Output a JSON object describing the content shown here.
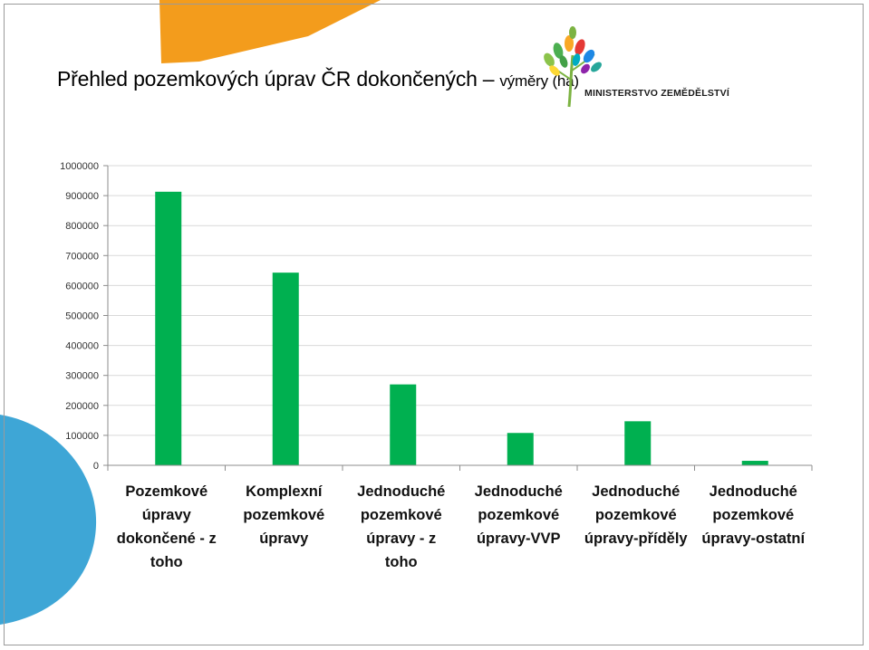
{
  "page": {
    "title_main": "Přehled pozemkových úprav ČR dokončených",
    "title_sep": "–",
    "title_sub": "výměry (ha)",
    "logo_text": "MINISTERSTVO ZEMĚDĚLSTVÍ"
  },
  "colors": {
    "bar": "#00b050",
    "decor_orange": "#f39c1c",
    "decor_blue": "#3ea6d6"
  },
  "chart_data": {
    "type": "bar",
    "categories": [
      "Pozemkové úpravy dokončené - z toho",
      "Komplexní pozemkové úpravy",
      "Jednoduché pozemkové úpravy - z toho",
      "Jednoduché pozemkové úpravy-VVP",
      "Jednoduché pozemkové úpravy-příděly",
      "Jednoduché pozemkové úpravy-ostatní"
    ],
    "category_lines": [
      [
        "Pozemkové",
        "úpravy",
        "dokončené - z",
        "toho"
      ],
      [
        "Komplexní",
        "pozemkové",
        "úpravy"
      ],
      [
        "Jednoduché",
        "pozemkové",
        "úpravy - z",
        "toho"
      ],
      [
        "Jednoduché",
        "pozemkové",
        "úpravy-VVP"
      ],
      [
        "Jednoduché",
        "pozemkové",
        "úpravy-příděly"
      ],
      [
        "Jednoduché",
        "pozemkové",
        "úpravy-ostatní"
      ]
    ],
    "values": [
      913000,
      643000,
      270000,
      108000,
      147000,
      15000
    ],
    "ylim": [
      0,
      1000000
    ],
    "yticks": [
      0,
      100000,
      200000,
      300000,
      400000,
      500000,
      600000,
      700000,
      800000,
      900000,
      1000000
    ],
    "ytick_labels": [
      "0",
      "100000",
      "200000",
      "300000",
      "400000",
      "500000",
      "600000",
      "700000",
      "800000",
      "900000",
      "1000000"
    ],
    "grid": true,
    "legend": "none",
    "title": "",
    "xlabel": "",
    "ylabel": ""
  }
}
